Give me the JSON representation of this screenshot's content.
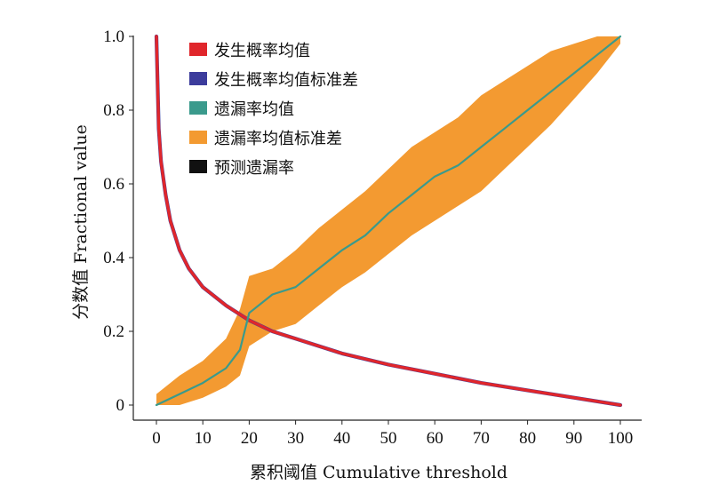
{
  "chart_data": {
    "type": "line",
    "xlabel": "累积阈值 Cumulative threshold",
    "ylabel": "分数值 Fractional value",
    "xlim": [
      0,
      100
    ],
    "ylim": [
      0,
      1.0
    ],
    "x_ticks": [
      "0",
      "10",
      "20",
      "30",
      "40",
      "50",
      "60",
      "70",
      "80",
      "90",
      "100"
    ],
    "y_ticks": [
      "0",
      "0.2",
      "0.4",
      "0.6",
      "0.8",
      "1.0"
    ],
    "legend_position": "top-left",
    "series": [
      {
        "name": "发生概率均值",
        "color": "#e0262b",
        "x": [
          0,
          0.5,
          1,
          2,
          3,
          5,
          7,
          10,
          15,
          20,
          25,
          30,
          40,
          50,
          60,
          70,
          80,
          90,
          100
        ],
        "values": [
          1.0,
          0.75,
          0.66,
          0.57,
          0.5,
          0.42,
          0.37,
          0.32,
          0.27,
          0.23,
          0.2,
          0.18,
          0.14,
          0.11,
          0.085,
          0.06,
          0.04,
          0.02,
          0.0
        ]
      },
      {
        "name": "发生概率均值标准差",
        "color": "#3c3c9c",
        "x": [
          0,
          0.5,
          1,
          2,
          3,
          5,
          7,
          10,
          15,
          20,
          25,
          30,
          40,
          50,
          60,
          70,
          80,
          90,
          100
        ],
        "values": [
          1.0,
          0.75,
          0.66,
          0.57,
          0.5,
          0.42,
          0.37,
          0.32,
          0.27,
          0.23,
          0.2,
          0.18,
          0.14,
          0.11,
          0.085,
          0.06,
          0.04,
          0.02,
          0.0
        ]
      },
      {
        "name": "遗漏率均值",
        "color": "#3a9a8c",
        "x": [
          0,
          5,
          10,
          15,
          18,
          20,
          25,
          30,
          35,
          40,
          45,
          50,
          55,
          60,
          65,
          70,
          75,
          80,
          85,
          90,
          95,
          100
        ],
        "values": [
          0.0,
          0.03,
          0.06,
          0.1,
          0.15,
          0.25,
          0.3,
          0.32,
          0.37,
          0.42,
          0.46,
          0.52,
          0.57,
          0.62,
          0.65,
          0.7,
          0.75,
          0.8,
          0.85,
          0.9,
          0.95,
          1.0
        ]
      },
      {
        "name": "遗漏率均值标准差",
        "color": "#f39a31",
        "type": "band",
        "x": [
          0,
          5,
          10,
          15,
          18,
          20,
          25,
          30,
          35,
          40,
          45,
          50,
          55,
          60,
          65,
          70,
          75,
          80,
          85,
          90,
          95,
          100
        ],
        "lower": [
          0.0,
          0.0,
          0.02,
          0.05,
          0.08,
          0.16,
          0.2,
          0.22,
          0.27,
          0.32,
          0.36,
          0.41,
          0.46,
          0.5,
          0.54,
          0.58,
          0.64,
          0.7,
          0.76,
          0.83,
          0.9,
          0.98
        ],
        "upper": [
          0.03,
          0.08,
          0.12,
          0.18,
          0.26,
          0.35,
          0.37,
          0.42,
          0.48,
          0.53,
          0.58,
          0.64,
          0.7,
          0.74,
          0.78,
          0.84,
          0.88,
          0.92,
          0.96,
          0.98,
          1.0,
          1.0
        ]
      },
      {
        "name": "预测遗漏率",
        "color": "#111111",
        "x": [],
        "values": []
      }
    ]
  }
}
